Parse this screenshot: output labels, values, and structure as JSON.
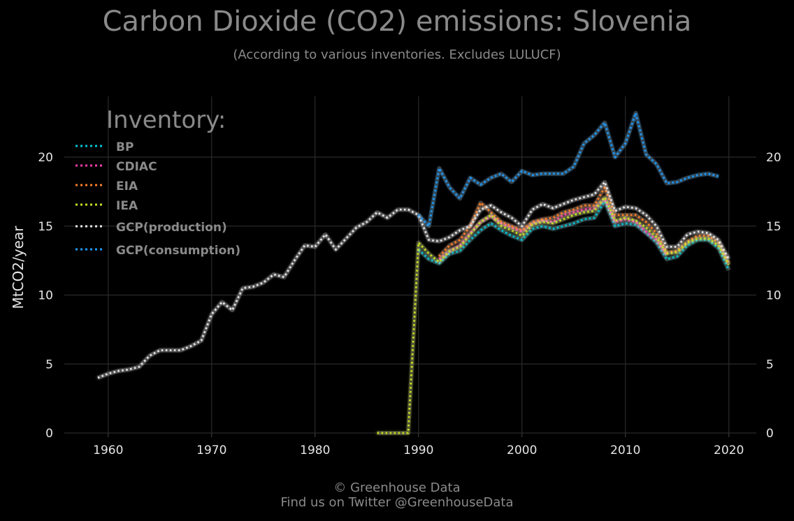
{
  "header": {
    "title": "Carbon Dioxide (CO2) emissions: Slovenia",
    "subtitle": "(According to various inventories. Excludes LULUCF)"
  },
  "footer": {
    "line1": "© Greenhouse Data",
    "line2": "Find us on Twitter @GreenhouseData"
  },
  "chart_data": {
    "type": "line",
    "title": "Carbon Dioxide (CO2) emissions: Slovenia",
    "subtitle": "(According to various inventories. Excludes LULUCF)",
    "ylabel": "MtCO2/year",
    "xlabel": "",
    "xlim": [
      1956,
      2023
    ],
    "ylim": [
      0,
      24
    ],
    "x_ticks": [
      1960,
      1970,
      1980,
      1990,
      2000,
      2010,
      2020
    ],
    "y_ticks": [
      0,
      5,
      10,
      15,
      20
    ],
    "grid": true,
    "background": "#000000",
    "legend_title": "Inventory:",
    "legend_position": "top-left",
    "series": [
      {
        "name": "BP",
        "color": "#00c5d4",
        "x": [
          1990,
          1991,
          1992,
          1993,
          1994,
          1995,
          1996,
          1997,
          1998,
          1999,
          2000,
          2001,
          2002,
          2003,
          2004,
          2005,
          2006,
          2007,
          2008,
          2009,
          2010,
          2011,
          2012,
          2013,
          2014,
          2015,
          2016,
          2017,
          2018,
          2019,
          2020
        ],
        "y": [
          13.3,
          12.6,
          12.3,
          13.0,
          13.2,
          14.0,
          14.7,
          15.2,
          14.7,
          14.3,
          14.0,
          14.8,
          15.0,
          14.8,
          15.0,
          15.2,
          15.5,
          15.6,
          16.8,
          15.0,
          15.2,
          15.1,
          14.5,
          13.8,
          12.6,
          12.8,
          13.6,
          14.0,
          14.0,
          13.4,
          11.8
        ]
      },
      {
        "name": "CDIAC",
        "color": "#ff3dae",
        "x": [
          1992,
          1993,
          1994,
          1995,
          1996,
          1997,
          1998,
          1999,
          2000,
          2001,
          2002,
          2003,
          2004,
          2005,
          2006,
          2007,
          2008,
          2009,
          2010,
          2011,
          2012,
          2013,
          2014
        ],
        "y": [
          12.6,
          13.2,
          13.6,
          14.5,
          15.3,
          15.7,
          15.2,
          14.9,
          14.6,
          15.2,
          15.4,
          15.3,
          15.8,
          16.0,
          16.2,
          16.3,
          17.0,
          15.3,
          15.5,
          15.3,
          14.6,
          14.0,
          12.9
        ]
      },
      {
        "name": "EIA",
        "color": "#ff7f27",
        "x": [
          1992,
          1993,
          1994,
          1995,
          1996,
          1997,
          1998,
          1999,
          2000,
          2001,
          2002,
          2003,
          2004,
          2005,
          2006,
          2007,
          2008,
          2009,
          2010,
          2011,
          2012,
          2013,
          2014,
          2015,
          2016,
          2017,
          2018,
          2019,
          2020
        ],
        "y": [
          12.8,
          13.6,
          14.0,
          15.0,
          16.7,
          16.0,
          15.3,
          15.0,
          14.7,
          15.3,
          15.5,
          15.6,
          16.0,
          16.2,
          16.5,
          16.5,
          17.8,
          15.8,
          15.8,
          15.8,
          15.3,
          14.5,
          13.1,
          13.2,
          13.9,
          14.3,
          14.3,
          13.8,
          12.3
        ]
      },
      {
        "name": "IEA",
        "color": "#c8e021",
        "x": [
          1986,
          1987,
          1988,
          1989,
          1990,
          1991,
          1992,
          1993,
          1994,
          1995,
          1996,
          1997,
          1998,
          1999,
          2000,
          2001,
          2002,
          2003,
          2004,
          2005,
          2006,
          2007,
          2008,
          2009,
          2010,
          2011,
          2012,
          2013,
          2014,
          2015,
          2016,
          2017,
          2018,
          2019,
          2020
        ],
        "y": [
          0,
          0,
          0,
          0,
          13.8,
          13.0,
          12.4,
          13.2,
          13.5,
          14.4,
          15.3,
          15.8,
          15.0,
          14.7,
          14.3,
          15.1,
          15.3,
          15.2,
          15.5,
          15.8,
          16.0,
          16.1,
          17.1,
          15.4,
          15.6,
          15.4,
          14.9,
          14.2,
          13.0,
          13.1,
          13.8,
          14.1,
          14.1,
          13.6,
          12.2
        ]
      },
      {
        "name": "GCP(production)",
        "color": "#e6e6e6",
        "x": [
          1959,
          1960,
          1961,
          1962,
          1963,
          1964,
          1965,
          1966,
          1967,
          1968,
          1969,
          1970,
          1971,
          1972,
          1973,
          1974,
          1975,
          1976,
          1977,
          1978,
          1979,
          1980,
          1981,
          1982,
          1983,
          1984,
          1985,
          1986,
          1987,
          1988,
          1989,
          1990,
          1991,
          1992,
          1993,
          1994,
          1995,
          1996,
          1997,
          1998,
          1999,
          2000,
          2001,
          2002,
          2003,
          2004,
          2005,
          2006,
          2007,
          2008,
          2009,
          2010,
          2011,
          2012,
          2013,
          2014,
          2015,
          2016,
          2017,
          2018,
          2019,
          2020
        ],
        "y": [
          4.0,
          4.3,
          4.5,
          4.6,
          4.8,
          5.6,
          6.0,
          6.0,
          6.0,
          6.3,
          6.7,
          8.6,
          9.5,
          8.9,
          10.5,
          10.6,
          10.9,
          11.5,
          11.3,
          12.5,
          13.6,
          13.5,
          14.4,
          13.3,
          14.1,
          14.9,
          15.3,
          16.0,
          15.6,
          16.2,
          16.2,
          15.8,
          14.0,
          13.9,
          14.2,
          14.7,
          15.0,
          16.2,
          16.5,
          16.0,
          15.6,
          15.0,
          16.2,
          16.6,
          16.3,
          16.6,
          16.9,
          17.1,
          17.3,
          18.2,
          16.1,
          16.4,
          16.3,
          15.8,
          15.0,
          13.5,
          13.5,
          14.4,
          14.6,
          14.5,
          14.0,
          12.6
        ]
      },
      {
        "name": "GCP(consumption)",
        "color": "#1e9bff",
        "x": [
          1990,
          1991,
          1992,
          1993,
          1994,
          1995,
          1996,
          1997,
          1998,
          1999,
          2000,
          2001,
          2002,
          2003,
          2004,
          2005,
          2006,
          2007,
          2008,
          2009,
          2010,
          2011,
          2012,
          2013,
          2014,
          2015,
          2016,
          2017,
          2018,
          2019
        ],
        "y": [
          15.8,
          15.0,
          19.2,
          17.8,
          17.0,
          18.5,
          18.0,
          18.5,
          18.8,
          18.2,
          19.0,
          18.7,
          18.8,
          18.8,
          18.8,
          19.3,
          21.0,
          21.6,
          22.5,
          20.0,
          21.0,
          23.2,
          20.2,
          19.5,
          18.1,
          18.2,
          18.5,
          18.7,
          18.8,
          18.6
        ]
      }
    ]
  }
}
